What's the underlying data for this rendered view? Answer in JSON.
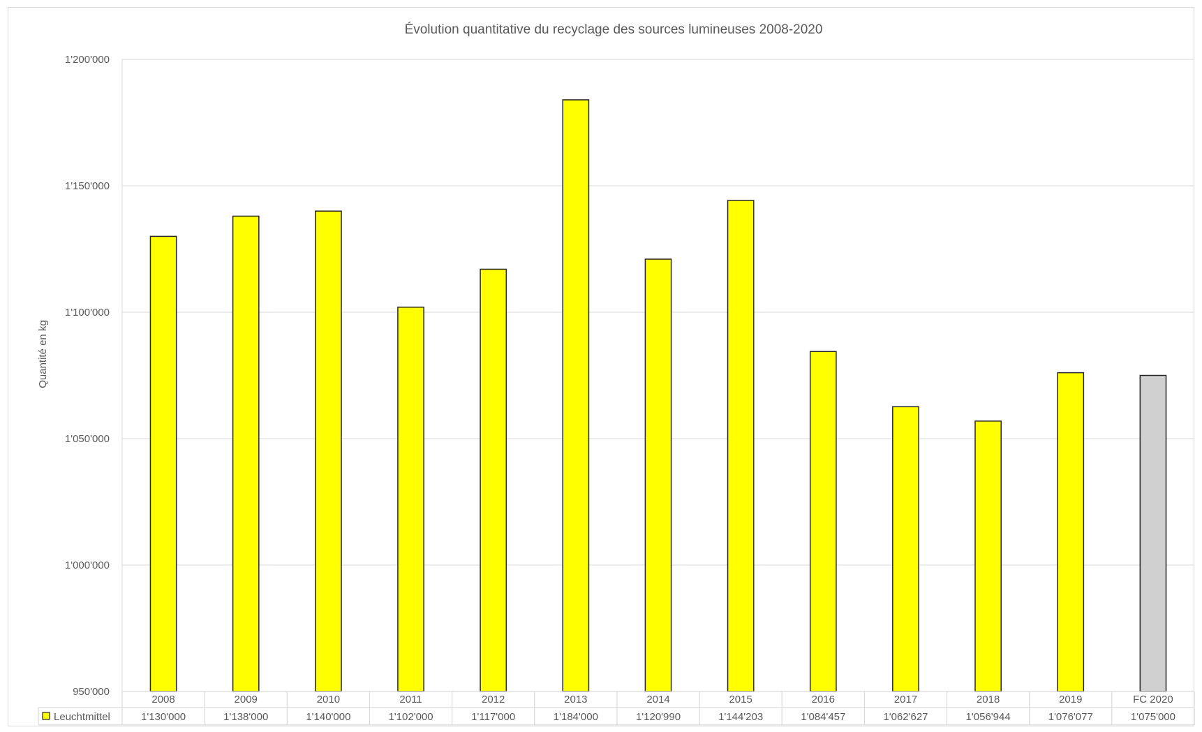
{
  "chart_data": {
    "type": "bar",
    "title": "Évolution quantitative du recyclage des sources lumineuses 2008-2020",
    "ylabel": "Quantité en kg",
    "xlabel": "",
    "ylim": [
      950000,
      1200000
    ],
    "y_ticks": [
      950000,
      1000000,
      1050000,
      1100000,
      1150000,
      1200000
    ],
    "y_tick_labels": [
      "950'000",
      "1'000'000",
      "1'050'000",
      "1'100'000",
      "1'150'000",
      "1'200'000"
    ],
    "grid": true,
    "legend_position": "data-table",
    "categories": [
      "2008",
      "2009",
      "2010",
      "2011",
      "2012",
      "2013",
      "2014",
      "2015",
      "2016",
      "2017",
      "2018",
      "2019",
      "FC 2020"
    ],
    "series": [
      {
        "name": "Leuchtmittel",
        "color": "#ffff00",
        "forecast_color": "#d0d0d0",
        "values": [
          1130000,
          1138000,
          1140000,
          1102000,
          1117000,
          1184000,
          1120990,
          1144203,
          1084457,
          1062627,
          1056944,
          1076077,
          1075000
        ],
        "value_labels": [
          "1'130'000",
          "1'138'000",
          "1'140'000",
          "1'102'000",
          "1'117'000",
          "1'184'000",
          "1'120'990",
          "1'144'203",
          "1'084'457",
          "1'062'627",
          "1'056'944",
          "1'076'077",
          "1'075'000"
        ]
      }
    ]
  },
  "colors": {
    "bar": "#ffff00",
    "forecast_bar": "#d0d0d0",
    "bar_border": "#262626",
    "grid": "#d9d9d9",
    "text": "#595959"
  }
}
